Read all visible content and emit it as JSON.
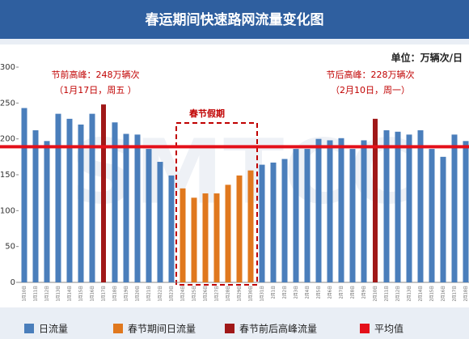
{
  "chart_data": {
    "type": "bar",
    "title": "春运期间快速路网流量变化图",
    "unit": "单位：万辆次/日",
    "watermark": "SMTCC",
    "categories": [
      "1月10日",
      "1月11日",
      "1月12日",
      "1月13日",
      "1月14日",
      "1月15日",
      "1月16日",
      "1月17日",
      "1月18日",
      "1月19日",
      "1月20日",
      "1月21日",
      "1月22日",
      "1月23日",
      "1月24日",
      "1月25日",
      "1月26日",
      "1月27日",
      "1月28日",
      "1月29日",
      "1月30日",
      "1月31日",
      "2月1日",
      "2月2日",
      "2月3日",
      "2月4日",
      "2月5日",
      "2月6日",
      "2月7日",
      "2月8日",
      "2月9日",
      "2月10日",
      "2月11日",
      "2月12日",
      "2月13日",
      "2月14日",
      "2月15日",
      "2月16日",
      "2月17日",
      "2月18日"
    ],
    "series": [
      {
        "name": "日流量",
        "color": "#4a7ebb",
        "values": [
          243,
          212,
          197,
          235,
          228,
          220,
          235,
          null,
          223,
          207,
          206,
          186,
          168,
          149,
          null,
          null,
          null,
          null,
          null,
          null,
          null,
          164,
          167,
          172,
          186,
          186,
          200,
          198,
          201,
          186,
          198,
          null,
          212,
          210,
          206,
          212,
          186,
          175,
          206,
          197
        ]
      },
      {
        "name": "春节期间日流量",
        "color": "#e0781e",
        "values": [
          null,
          null,
          null,
          null,
          null,
          null,
          null,
          null,
          null,
          null,
          null,
          null,
          null,
          null,
          131,
          118,
          124,
          124,
          136,
          149,
          156,
          null,
          null,
          null,
          null,
          null,
          null,
          null,
          null,
          null,
          null,
          null,
          null,
          null,
          null,
          null,
          null,
          null,
          null,
          null
        ]
      },
      {
        "name": "春节前后高峰流量",
        "color": "#a01818",
        "values": [
          null,
          null,
          null,
          null,
          null,
          null,
          null,
          248,
          null,
          null,
          null,
          null,
          null,
          null,
          null,
          null,
          null,
          null,
          null,
          null,
          null,
          null,
          null,
          null,
          null,
          null,
          null,
          null,
          null,
          null,
          null,
          228,
          null,
          null,
          null,
          null,
          null,
          null,
          null,
          null
        ]
      }
    ],
    "average": {
      "name": "平均值",
      "color": "#e4101a",
      "value": 189
    },
    "annotations": {
      "pre_peak": "节前高峰：248万辆次",
      "pre_peak_date": "（1月17日，周五 ）",
      "post_peak": "节后高峰：228万辆次",
      "post_peak_date": "（2月10日，周一）",
      "holiday": "春节假期"
    },
    "ylim": [
      0,
      300
    ],
    "yticks": [
      0,
      50,
      100,
      150,
      200,
      250,
      300
    ]
  }
}
